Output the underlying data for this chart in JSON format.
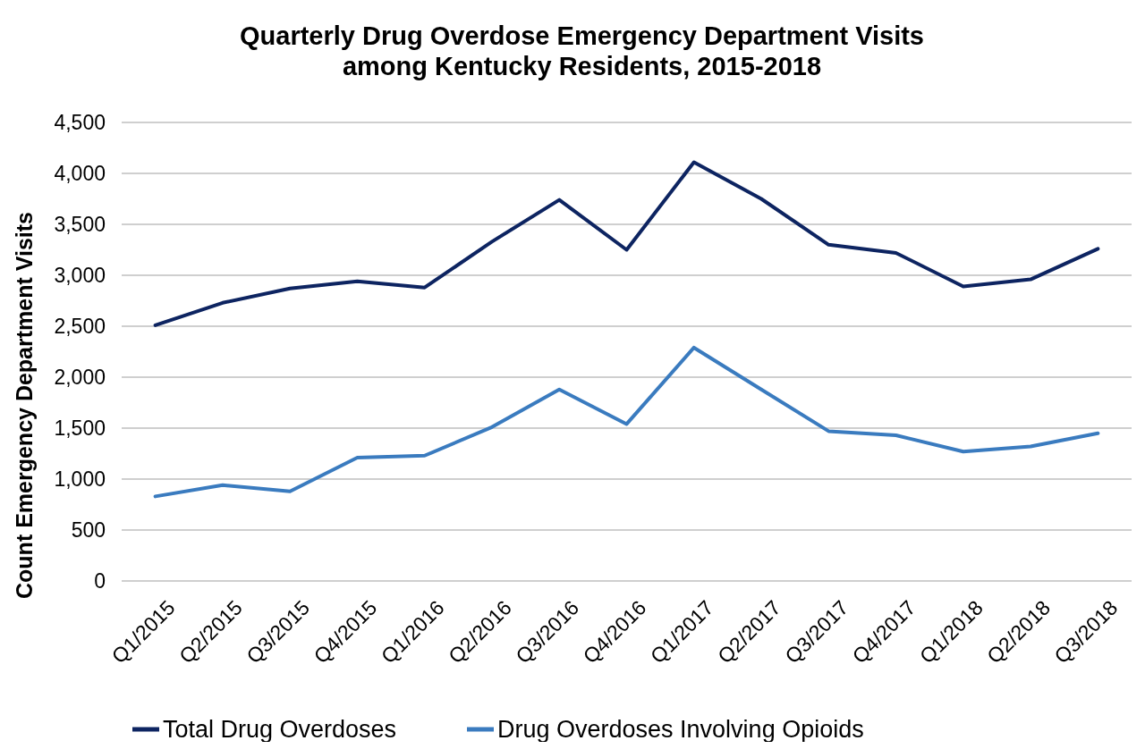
{
  "chart_data": {
    "type": "line",
    "title": "Quarterly Drug Overdose Emergency Department Visits among Kentucky Residents, 2015-2018",
    "ylabel": "Count Emergency Department Visits",
    "categories": [
      "Q1/2015",
      "Q2/2015",
      "Q3/2015",
      "Q4/2015",
      "Q1/2016",
      "Q2/2016",
      "Q3/2016",
      "Q4/2016",
      "Q1/2017",
      "Q2/2017",
      "Q3/2017",
      "Q4/2017",
      "Q1/2018",
      "Q2/2018",
      "Q3/2018"
    ],
    "series": [
      {
        "name": "Total Drug Overdoses",
        "color": "#0d2461",
        "values": [
          2510,
          2730,
          2870,
          2940,
          2880,
          3330,
          3740,
          3250,
          4110,
          3750,
          3300,
          3220,
          2890,
          2960,
          3260
        ]
      },
      {
        "name": "Drug Overdoses Involving Opioids",
        "color": "#3a7bbf",
        "values": [
          830,
          940,
          880,
          1210,
          1230,
          1510,
          1880,
          1540,
          2290,
          1880,
          1470,
          1430,
          1270,
          1320,
          1450
        ]
      }
    ],
    "ylim": [
      0,
      4500
    ],
    "yticks": [
      0,
      500,
      {
        "value": 1000,
        "label": "1,000"
      },
      {
        "value": 1500,
        "label": "1,500"
      },
      {
        "value": 2000,
        "label": "2,000"
      },
      {
        "value": 2500,
        "label": "2,500"
      },
      {
        "value": 3000,
        "label": "3,000"
      },
      {
        "value": 3500,
        "label": "3,500"
      },
      {
        "value": 4000,
        "label": "4,000"
      },
      {
        "value": 4500,
        "label": "4,500"
      }
    ],
    "grid": "y",
    "legend": "bottom",
    "marker": "none",
    "line_style": "solid"
  }
}
